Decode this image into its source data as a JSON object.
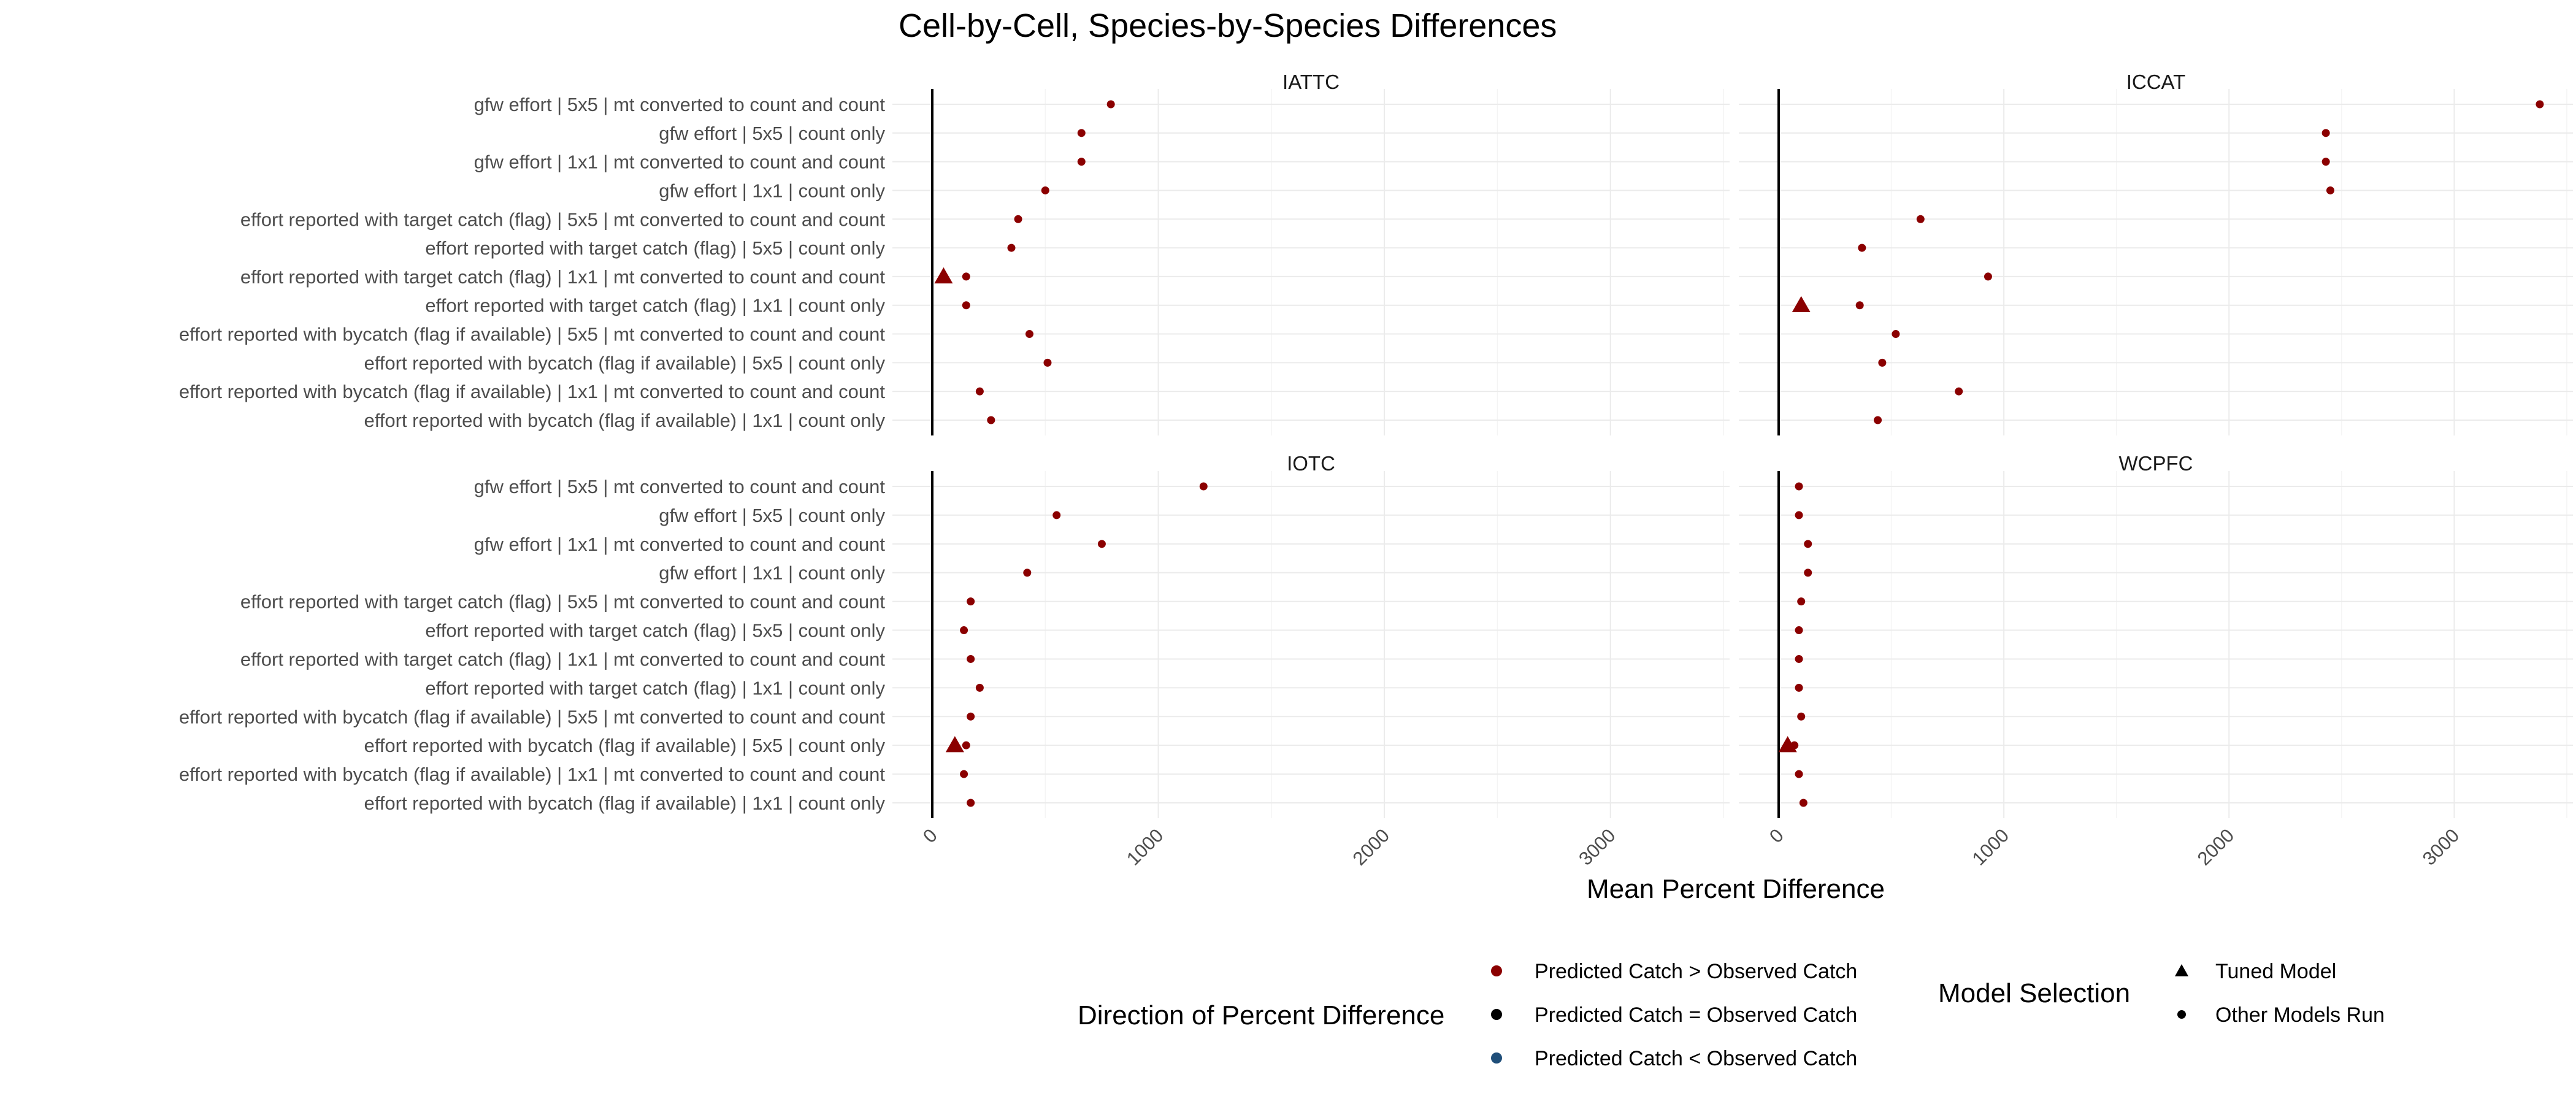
{
  "chart_data": {
    "type": "scatter",
    "title": "Cell-by-Cell, Species-by-Species Differences",
    "xlabel": "Mean Percent Difference",
    "ylabel": "",
    "xlim": [
      0,
      3500
    ],
    "x_ticks": [
      0,
      1000,
      2000,
      3000
    ],
    "reference_line_x": 0,
    "categories": [
      "gfw effort | 5x5 | mt converted to count and count",
      "gfw effort | 5x5 | count only",
      "gfw effort | 1x1 | mt converted to count and count",
      "gfw effort | 1x1 | count only",
      "effort reported with target catch (flag) | 5x5 | mt converted to count and count",
      "effort reported with target catch (flag) | 5x5 | count only",
      "effort reported with target catch (flag) | 1x1 | mt converted to count and count",
      "effort reported with target catch (flag) | 1x1 | count only",
      "effort reported with bycatch (flag if available) | 5x5 | mt converted to count and count",
      "effort reported with bycatch (flag if available) | 5x5 | count only",
      "effort reported with bycatch (flag if available) | 1x1 | mt converted to count and count",
      "effort reported with bycatch (flag if available) | 1x1 | count only"
    ],
    "panels": [
      {
        "name": "IATTC",
        "values": [
          790,
          660,
          660,
          500,
          380,
          350,
          150,
          150,
          430,
          510,
          210,
          260
        ],
        "tuned": {
          "category_index": 6,
          "value": 50
        }
      },
      {
        "name": "ICCAT",
        "values": [
          3380,
          2430,
          2430,
          2450,
          630,
          370,
          930,
          360,
          520,
          460,
          800,
          440
        ],
        "tuned": {
          "category_index": 7,
          "value": 100
        }
      },
      {
        "name": "IOTC",
        "values": [
          1200,
          550,
          750,
          420,
          170,
          140,
          170,
          210,
          170,
          150,
          140,
          170
        ],
        "tuned": {
          "category_index": 9,
          "value": 100
        }
      },
      {
        "name": "WCPFC",
        "values": [
          90,
          90,
          130,
          130,
          100,
          90,
          90,
          90,
          100,
          70,
          90,
          110
        ],
        "tuned": {
          "category_index": 9,
          "value": 40
        }
      }
    ],
    "legend": {
      "direction": {
        "title": "Direction of Percent Difference",
        "items": [
          {
            "label": "Predicted Catch > Observed Catch",
            "color": "#8b0000"
          },
          {
            "label": "Predicted Catch = Observed Catch",
            "color": "#000000"
          },
          {
            "label": "Predicted Catch < Observed Catch",
            "color": "#1f4e79"
          }
        ]
      },
      "model": {
        "title": "Model Selection",
        "items": [
          {
            "label": "Tuned Model",
            "shape": "triangle"
          },
          {
            "label": "Other Models Run",
            "shape": "circle"
          }
        ]
      },
      "placement": "bottom"
    },
    "grid": true
  }
}
